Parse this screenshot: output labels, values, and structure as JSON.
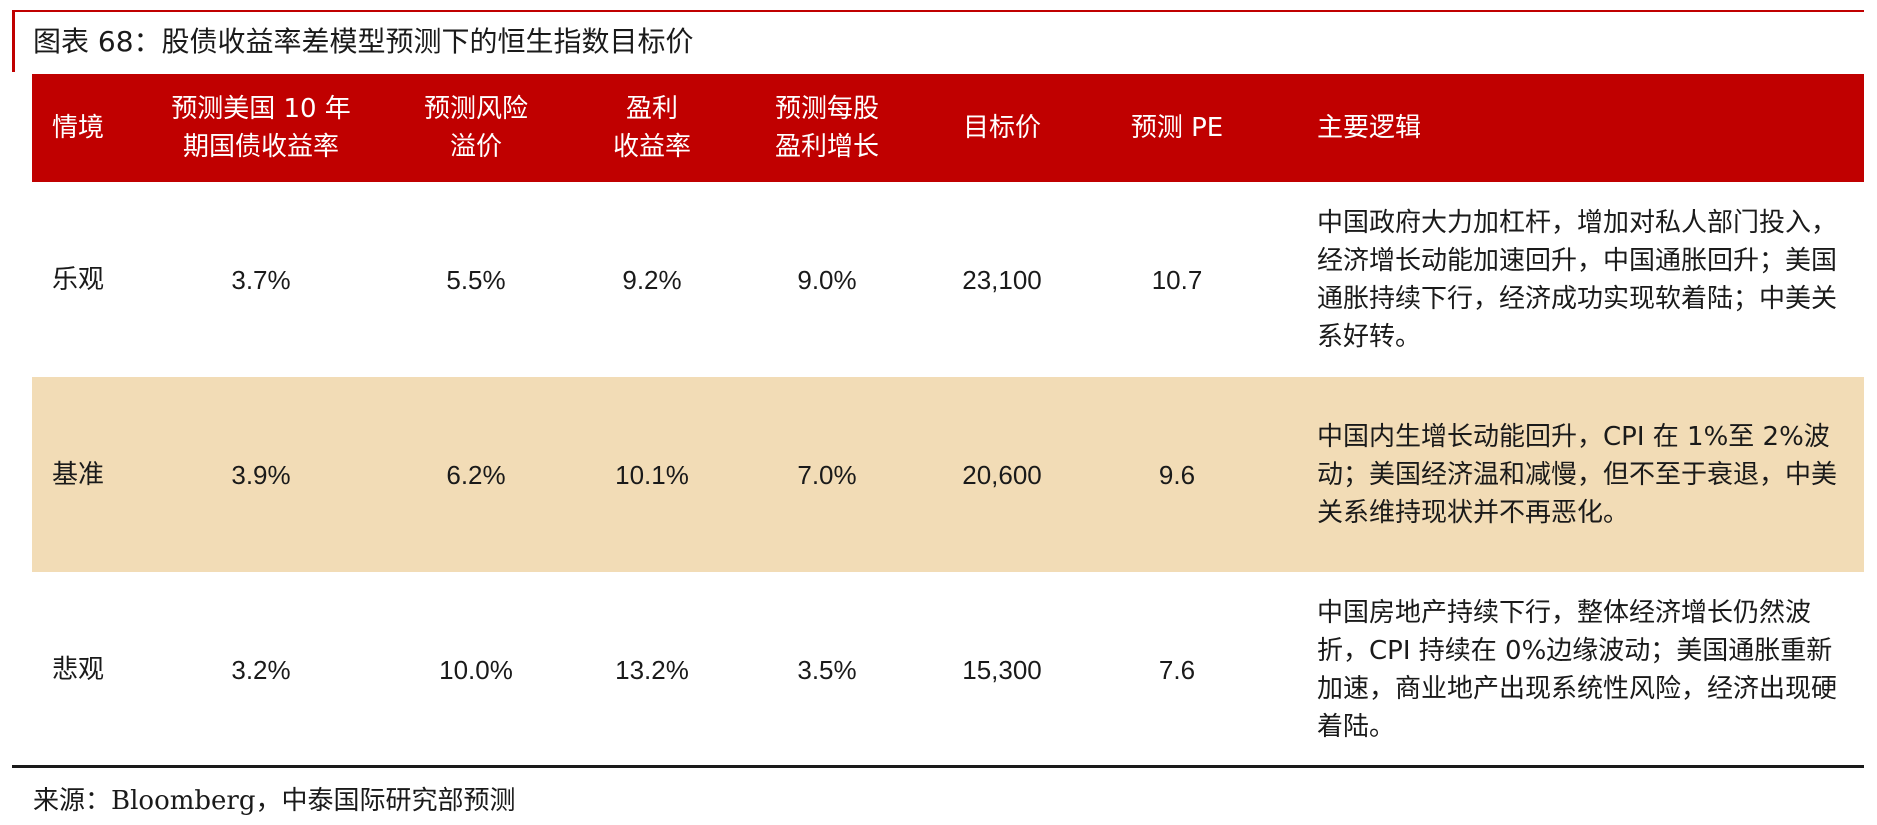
{
  "title": "图表 68：股债收益率差模型预测下的恒生指数目标价",
  "colors": {
    "accent": "#c00000",
    "shaded_row": "#f2dcb6",
    "header_text": "#ffffff"
  },
  "table": {
    "headers": [
      "情境",
      "预测美国 10 年\n期国债收益率",
      "预测风险\n溢价",
      "盈利\n收益率",
      "预测每股\n盈利增长",
      "目标价",
      "预测 PE",
      "主要逻辑"
    ],
    "rows": [
      {
        "scenario": "乐观",
        "us10y": "3.7%",
        "risk_premium": "5.5%",
        "earnings_yield": "9.2%",
        "eps_growth": "9.0%",
        "target_price": "23,100",
        "pe": "10.7",
        "logic": "中国政府大力加杠杆，增加对私人部门投入，经济增长动能加速回升，中国通胀回升；美国通胀持续下行，经济成功实现软着陆；中美关系好转。"
      },
      {
        "scenario": "基准",
        "us10y": "3.9%",
        "risk_premium": "6.2%",
        "earnings_yield": "10.1%",
        "eps_growth": "7.0%",
        "target_price": "20,600",
        "pe": "9.6",
        "logic": "中国内生增长动能回升，CPI 在 1%至 2%波动；美国经济温和减慢，但不至于衰退，中美关系维持现状并不再恶化。"
      },
      {
        "scenario": "悲观",
        "us10y": "3.2%",
        "risk_premium": "10.0%",
        "earnings_yield": "13.2%",
        "eps_growth": "3.5%",
        "target_price": "15,300",
        "pe": "7.6",
        "logic": "中国房地产持续下行，整体经济增长仍然波折，CPI 持续在 0%边缘波动；美国通胀重新加速，商业地产出现系统性风险，经济出现硬着陆。"
      }
    ]
  },
  "source": "来源：Bloomberg，中泰国际研究部预测"
}
